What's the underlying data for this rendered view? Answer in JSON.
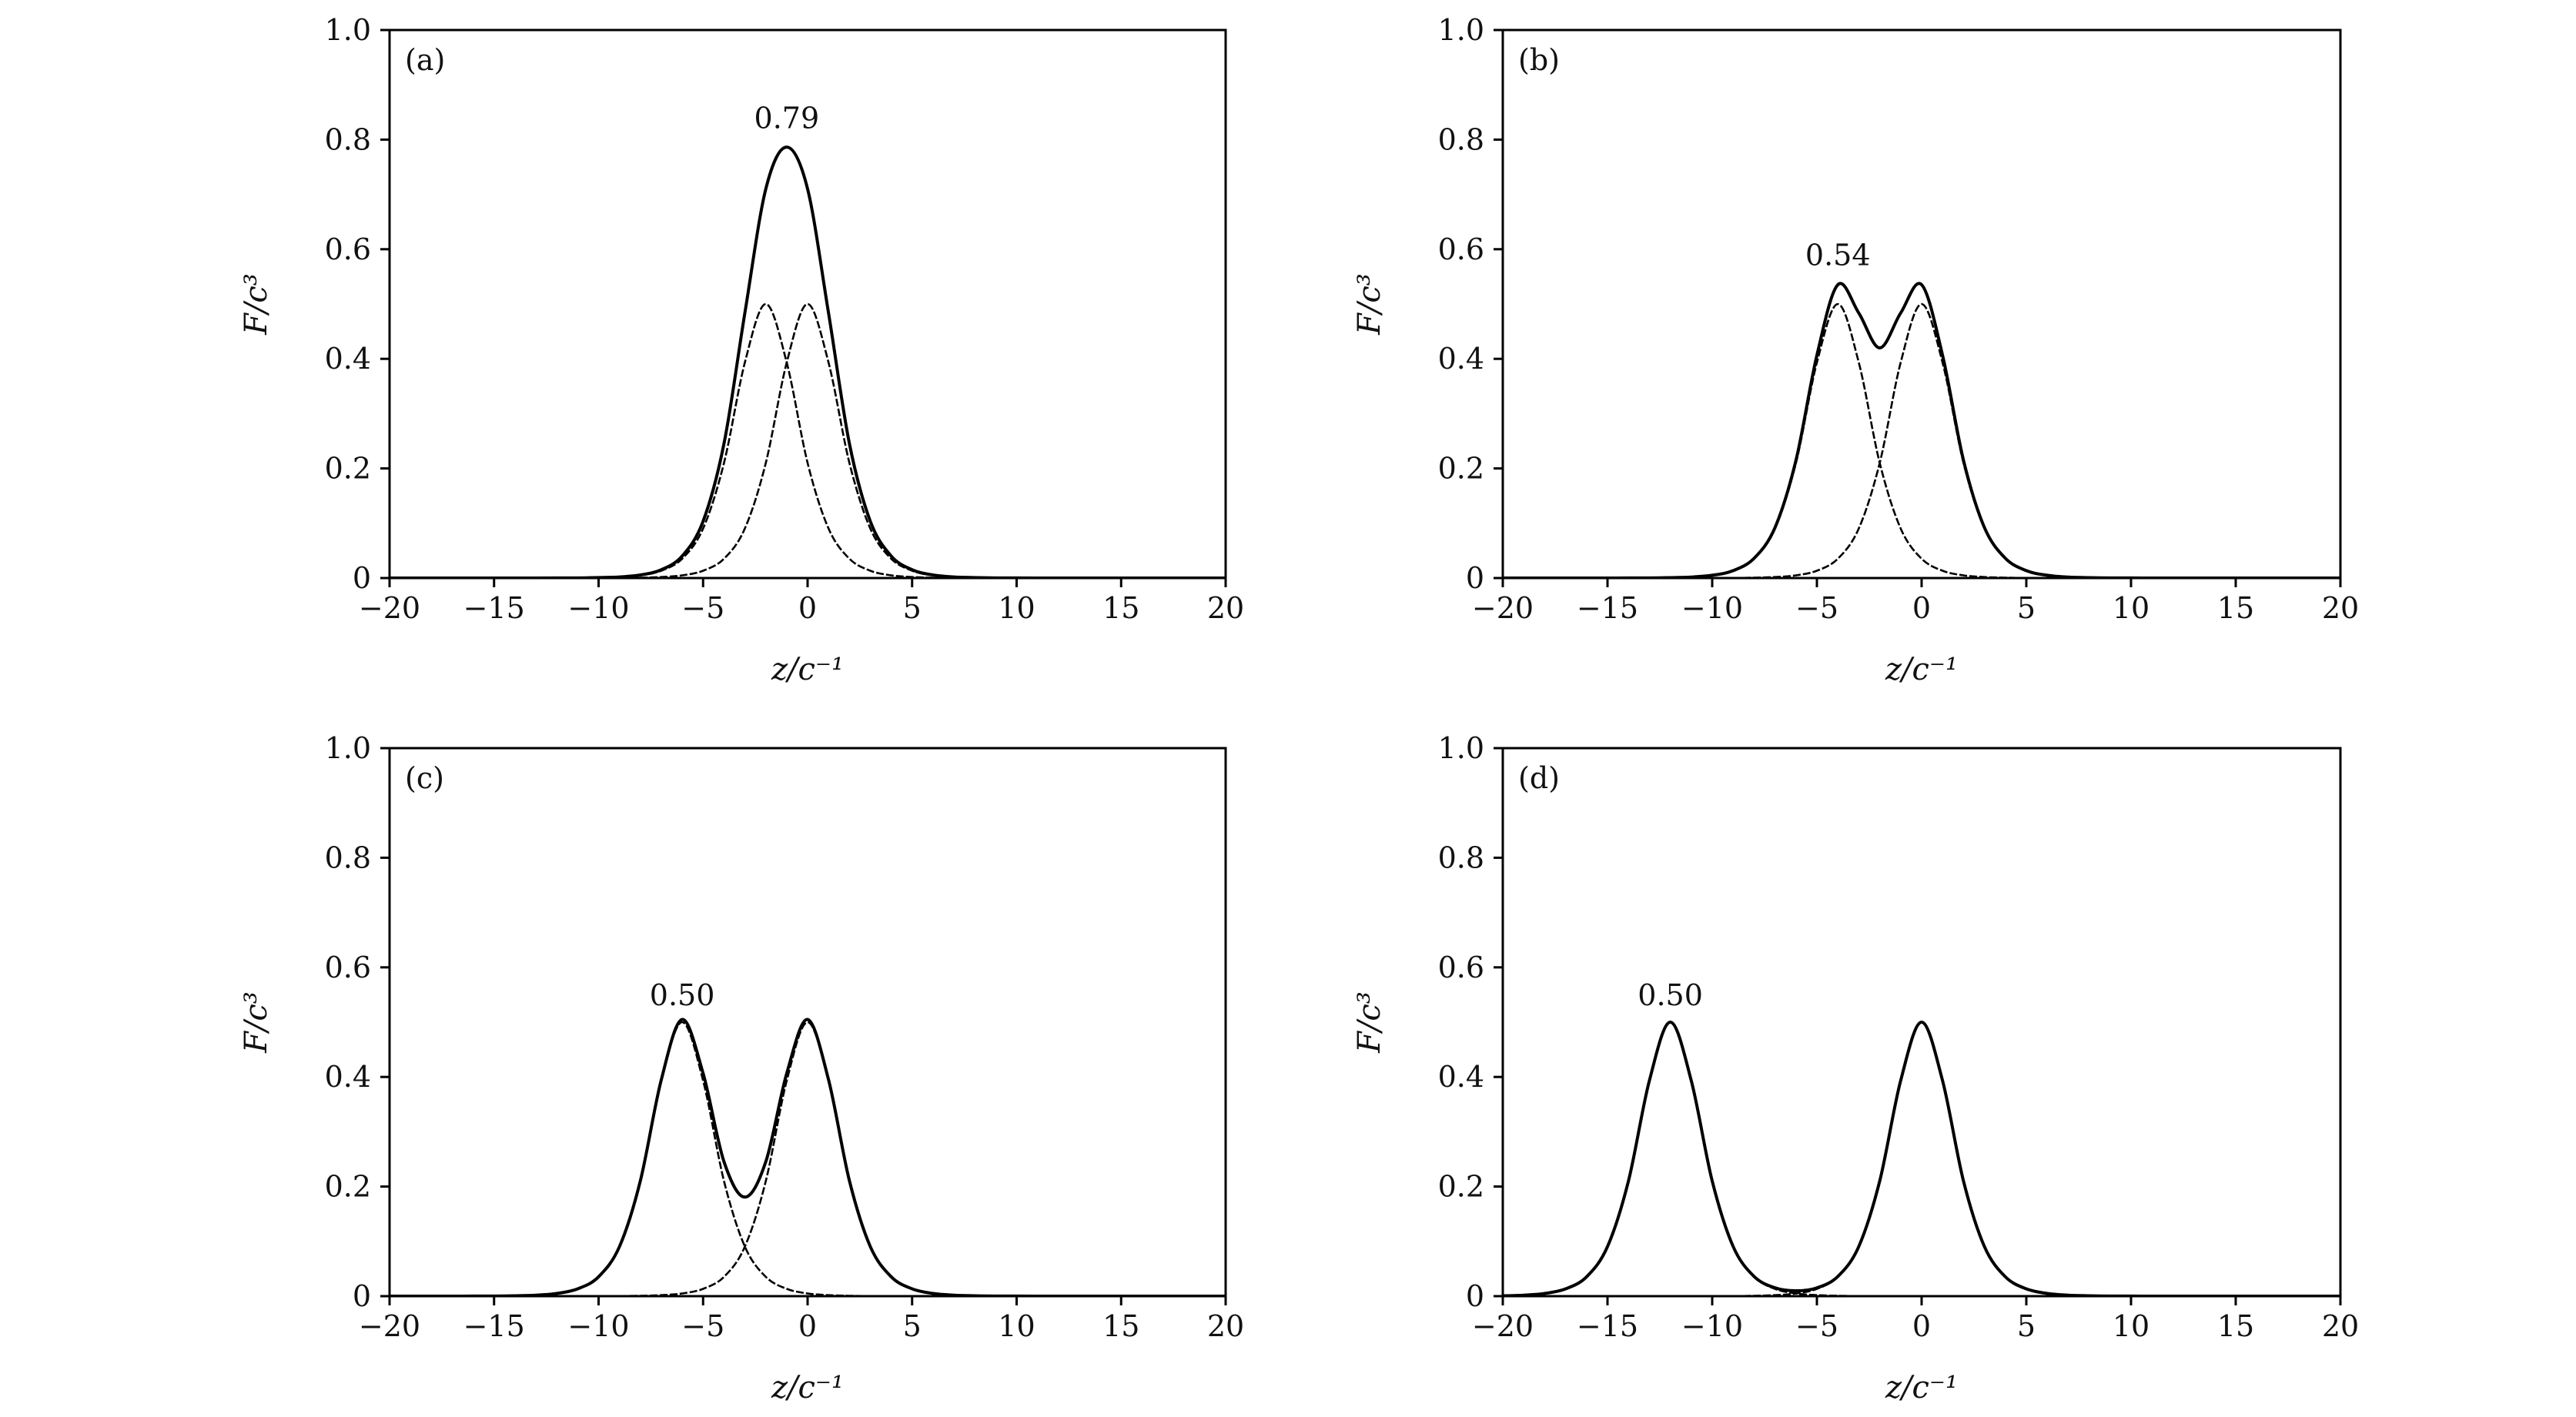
{
  "chart_data": [
    {
      "type": "line",
      "panel_label": "(a)",
      "xlabel": "z/c⁻¹",
      "ylabel": "F/c³",
      "xlim": [
        -20,
        20
      ],
      "ylim": [
        0,
        1.0
      ],
      "xticks": [
        "−20",
        "−15",
        "−10",
        "−5",
        "0",
        "5",
        "10",
        "15",
        "20"
      ],
      "yticks": [
        "0",
        "0.2",
        "0.4",
        "0.6",
        "0.8",
        "1.0"
      ],
      "grid": false,
      "annotations": [
        {
          "text": "0.79",
          "x": -1,
          "y": 0.79
        }
      ],
      "x": [
        -20,
        -19,
        -18,
        -17,
        -16,
        -15,
        -14,
        -13,
        -12,
        -11,
        -10,
        -9,
        -8,
        -7,
        -6,
        -5,
        -4,
        -3,
        -2,
        -1,
        0,
        1,
        2,
        3,
        4,
        5,
        6,
        7,
        8,
        9,
        10,
        11,
        12,
        13,
        14,
        15,
        16,
        17,
        18,
        19,
        20
      ],
      "series": [
        {
          "style": "dashed",
          "values": [
            0,
            0,
            0,
            0,
            0,
            0,
            0,
            0,
            0.0001,
            0.0002,
            0.0007,
            0.0018,
            0.0049,
            0.0133,
            0.0353,
            0.0904,
            0.21,
            0.3932,
            0.5,
            0.3932,
            0.21,
            0.0904,
            0.0353,
            0.0133,
            0.0049,
            0.0018,
            0.0007,
            0.0002,
            0.0001,
            0,
            0,
            0,
            0,
            0,
            0,
            0,
            0,
            0,
            0,
            0,
            0
          ]
        },
        {
          "style": "dashed",
          "values": [
            0,
            0,
            0,
            0,
            0,
            0,
            0,
            0,
            0,
            0,
            0.0001,
            0.0002,
            0.0007,
            0.0018,
            0.0049,
            0.0133,
            0.0353,
            0.0904,
            0.21,
            0.3932,
            0.5,
            0.3932,
            0.21,
            0.0904,
            0.0353,
            0.0133,
            0.0049,
            0.0018,
            0.0007,
            0.0002,
            0.0001,
            0,
            0,
            0,
            0,
            0,
            0,
            0,
            0,
            0,
            0
          ]
        },
        {
          "style": "solid",
          "values": [
            0,
            0,
            0,
            0,
            0,
            0,
            0,
            0,
            0.0001,
            0.0002,
            0.0008,
            0.002,
            0.0056,
            0.0151,
            0.0402,
            0.1037,
            0.2453,
            0.4836,
            0.71,
            0.7864,
            0.71,
            0.4836,
            0.2453,
            0.1037,
            0.0402,
            0.0151,
            0.0056,
            0.002,
            0.0008,
            0.0002,
            0.0001,
            0,
            0,
            0,
            0,
            0,
            0,
            0,
            0,
            0,
            0
          ]
        }
      ]
    },
    {
      "type": "line",
      "panel_label": "(b)",
      "xlabel": "z/c⁻¹",
      "ylabel": "F/c³",
      "xlim": [
        -20,
        20
      ],
      "ylim": [
        0,
        1.0
      ],
      "xticks": [
        "−20",
        "−15",
        "−10",
        "−5",
        "0",
        "5",
        "10",
        "15",
        "20"
      ],
      "yticks": [
        "0",
        "0.2",
        "0.4",
        "0.6",
        "0.8",
        "1.0"
      ],
      "grid": false,
      "annotations": [
        {
          "text": "0.54",
          "x": -4,
          "y": 0.54
        }
      ],
      "x": [
        -20,
        -19,
        -18,
        -17,
        -16,
        -15,
        -14,
        -13,
        -12,
        -11,
        -10,
        -9,
        -8,
        -7,
        -6,
        -5,
        -4,
        -3,
        -2,
        -1,
        0,
        1,
        2,
        3,
        4,
        5,
        6,
        7,
        8,
        9,
        10,
        11,
        12,
        13,
        14,
        15,
        16,
        17,
        18,
        19,
        20
      ],
      "series": [
        {
          "style": "dashed",
          "values": [
            0,
            0,
            0,
            0,
            0,
            0,
            0.0001,
            0.0002,
            0.0007,
            0.0018,
            0.0049,
            0.0133,
            0.0353,
            0.0904,
            0.21,
            0.3932,
            0.5,
            0.3932,
            0.21,
            0.0904,
            0.0353,
            0.0133,
            0.0049,
            0.0018,
            0.0007,
            0.0002,
            0.0001,
            0,
            0,
            0,
            0,
            0,
            0,
            0,
            0,
            0,
            0,
            0,
            0,
            0,
            0
          ]
        },
        {
          "style": "dashed",
          "values": [
            0,
            0,
            0,
            0,
            0,
            0,
            0,
            0,
            0,
            0,
            0.0001,
            0.0002,
            0.0007,
            0.0018,
            0.0049,
            0.0133,
            0.0353,
            0.0904,
            0.21,
            0.3932,
            0.5,
            0.3932,
            0.21,
            0.0904,
            0.0353,
            0.0133,
            0.0049,
            0.0018,
            0.0007,
            0.0002,
            0.0001,
            0,
            0,
            0,
            0,
            0,
            0,
            0,
            0,
            0,
            0
          ]
        },
        {
          "style": "solid",
          "values": [
            0,
            0,
            0,
            0,
            0,
            0,
            0.0001,
            0.0002,
            0.0007,
            0.0018,
            0.005,
            0.0135,
            0.036,
            0.0922,
            0.2149,
            0.4065,
            0.5353,
            0.4836,
            0.42,
            0.4836,
            0.5353,
            0.4065,
            0.2149,
            0.0922,
            0.036,
            0.0135,
            0.005,
            0.0018,
            0.0007,
            0.0002,
            0.0001,
            0,
            0,
            0,
            0,
            0,
            0,
            0,
            0,
            0,
            0
          ]
        }
      ]
    },
    {
      "type": "line",
      "panel_label": "(c)",
      "xlabel": "z/c⁻¹",
      "ylabel": "F/c³",
      "xlim": [
        -20,
        20
      ],
      "ylim": [
        0,
        1.0
      ],
      "xticks": [
        "−20",
        "−15",
        "−10",
        "−5",
        "0",
        "5",
        "10",
        "15",
        "20"
      ],
      "yticks": [
        "0",
        "0.2",
        "0.4",
        "0.6",
        "0.8",
        "1.0"
      ],
      "grid": false,
      "annotations": [
        {
          "text": "0.50",
          "x": -6,
          "y": 0.5
        }
      ],
      "x": [
        -20,
        -19,
        -18,
        -17,
        -16,
        -15,
        -14,
        -13,
        -12,
        -11,
        -10,
        -9,
        -8,
        -7,
        -6,
        -5,
        -4,
        -3,
        -2,
        -1,
        0,
        1,
        2,
        3,
        4,
        5,
        6,
        7,
        8,
        9,
        10,
        11,
        12,
        13,
        14,
        15,
        16,
        17,
        18,
        19,
        20
      ],
      "series": [
        {
          "style": "dashed",
          "values": [
            0,
            0,
            0,
            0,
            0.0001,
            0.0002,
            0.0007,
            0.0018,
            0.0049,
            0.0133,
            0.0353,
            0.0904,
            0.21,
            0.3932,
            0.5,
            0.3932,
            0.21,
            0.0904,
            0.0353,
            0.0133,
            0.0049,
            0.0018,
            0.0007,
            0.0002,
            0.0001,
            0,
            0,
            0,
            0,
            0,
            0,
            0,
            0,
            0,
            0,
            0,
            0,
            0,
            0,
            0,
            0
          ]
        },
        {
          "style": "dashed",
          "values": [
            0,
            0,
            0,
            0,
            0,
            0,
            0,
            0,
            0,
            0,
            0.0001,
            0.0002,
            0.0007,
            0.0018,
            0.0049,
            0.0133,
            0.0353,
            0.0904,
            0.21,
            0.3932,
            0.5,
            0.3932,
            0.21,
            0.0904,
            0.0353,
            0.0133,
            0.0049,
            0.0018,
            0.0007,
            0.0002,
            0.0001,
            0,
            0,
            0,
            0,
            0,
            0,
            0,
            0,
            0,
            0
          ]
        },
        {
          "style": "solid",
          "values": [
            0,
            0,
            0,
            0,
            0.0001,
            0.0002,
            0.0007,
            0.0018,
            0.0049,
            0.0133,
            0.0354,
            0.0906,
            0.2107,
            0.395,
            0.5049,
            0.4065,
            0.2453,
            0.1808,
            0.2453,
            0.4065,
            0.5049,
            0.395,
            0.2107,
            0.0906,
            0.0354,
            0.0133,
            0.0049,
            0.0018,
            0.0007,
            0.0002,
            0.0001,
            0,
            0,
            0,
            0,
            0,
            0,
            0,
            0,
            0,
            0
          ]
        }
      ]
    },
    {
      "type": "line",
      "panel_label": "(d)",
      "xlabel": "z/c⁻¹",
      "ylabel": "F/c³",
      "xlim": [
        -20,
        20
      ],
      "ylim": [
        0,
        1.0
      ],
      "xticks": [
        "−20",
        "−15",
        "−10",
        "−5",
        "0",
        "5",
        "10",
        "15",
        "20"
      ],
      "yticks": [
        "0",
        "0.2",
        "0.4",
        "0.6",
        "0.8",
        "1.0"
      ],
      "grid": false,
      "annotations": [
        {
          "text": "0.50",
          "x": -12,
          "y": 0.5
        }
      ],
      "x": [
        -20,
        -19,
        -18,
        -17,
        -16,
        -15,
        -14,
        -13,
        -12,
        -11,
        -10,
        -9,
        -8,
        -7,
        -6,
        -5,
        -4,
        -3,
        -2,
        -1,
        0,
        1,
        2,
        3,
        4,
        5,
        6,
        7,
        8,
        9,
        10,
        11,
        12,
        13,
        14,
        15,
        16,
        17,
        18,
        19,
        20
      ],
      "series": [
        {
          "style": "dashed",
          "values": [
            0.0007,
            0.0018,
            0.0049,
            0.0133,
            0.0353,
            0.0904,
            0.21,
            0.3932,
            0.5,
            0.3932,
            0.21,
            0.0904,
            0.0353,
            0.0133,
            0.0049,
            0.0018,
            0.0007,
            0.0002,
            0.0001,
            0,
            0,
            0,
            0,
            0,
            0,
            0,
            0,
            0,
            0,
            0,
            0,
            0,
            0,
            0,
            0,
            0,
            0,
            0,
            0,
            0,
            0
          ]
        },
        {
          "style": "dashed",
          "values": [
            0,
            0,
            0,
            0,
            0,
            0,
            0,
            0,
            0,
            0,
            0.0001,
            0.0002,
            0.0007,
            0.0018,
            0.0049,
            0.0133,
            0.0353,
            0.0904,
            0.21,
            0.3932,
            0.5,
            0.3932,
            0.21,
            0.0904,
            0.0353,
            0.0133,
            0.0049,
            0.0018,
            0.0007,
            0.0002,
            0.0001,
            0,
            0,
            0,
            0,
            0,
            0,
            0,
            0,
            0,
            0
          ]
        },
        {
          "style": "solid",
          "values": [
            0.0007,
            0.0018,
            0.0049,
            0.0133,
            0.0353,
            0.0904,
            0.21,
            0.3932,
            0.5,
            0.3932,
            0.2101,
            0.0906,
            0.036,
            0.0151,
            0.0098,
            0.0151,
            0.036,
            0.0906,
            0.2101,
            0.3932,
            0.5,
            0.3932,
            0.21,
            0.0904,
            0.0353,
            0.0133,
            0.0049,
            0.0018,
            0.0007,
            0.0002,
            0.0001,
            0,
            0,
            0,
            0,
            0,
            0,
            0,
            0,
            0,
            0
          ]
        }
      ]
    }
  ]
}
